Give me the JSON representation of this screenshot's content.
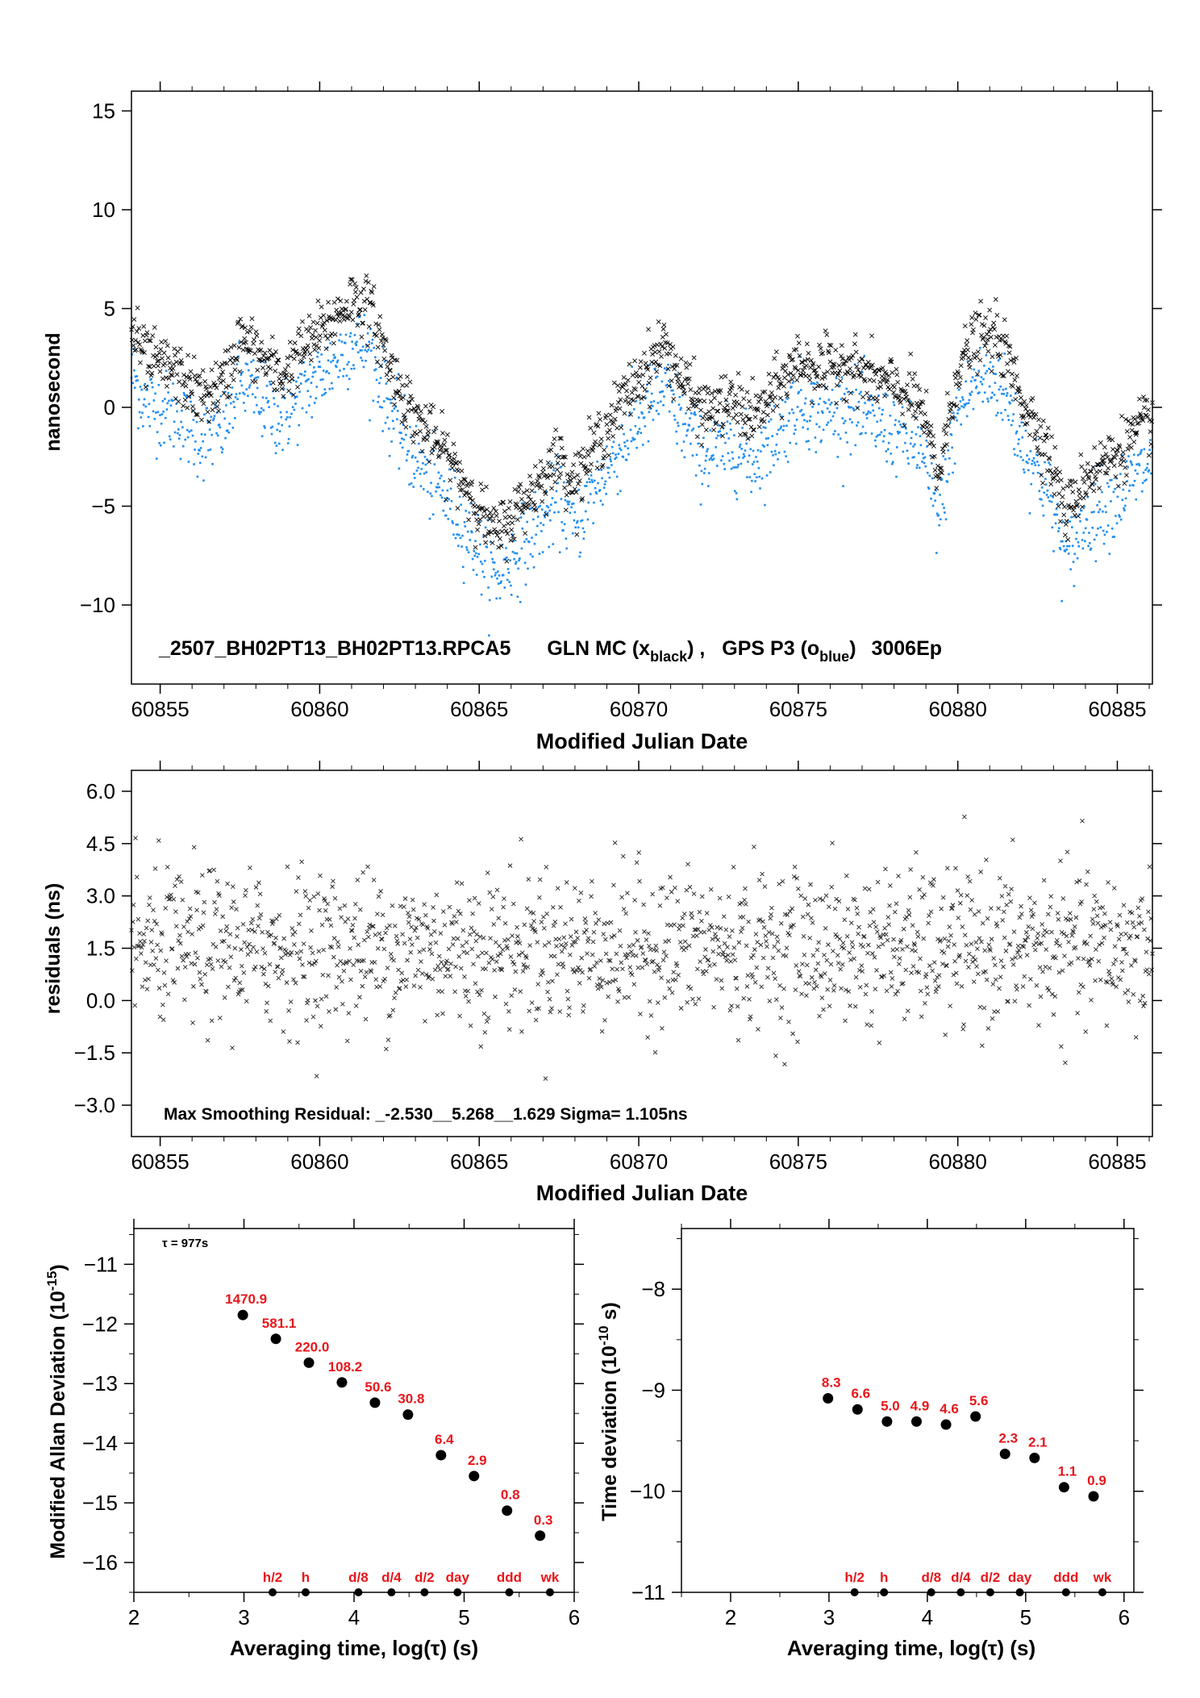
{
  "chart_data": [
    {
      "type": "scatter",
      "xlabel": "Modified Julian Date",
      "ylabel": "nanosecond",
      "xlim": [
        60854.1,
        60886.1
      ],
      "ylim": [
        -14,
        16
      ],
      "xticks": [
        60855,
        60860,
        60865,
        60870,
        60875,
        60880,
        60885
      ],
      "yticks": [
        -10,
        -5,
        0,
        5,
        10,
        15
      ],
      "xtick_labels": [
        "60855",
        "60860",
        "60865",
        "60870",
        "60875",
        "60880",
        "60885"
      ],
      "ytick_labels": [
        "−10",
        "−5",
        "0",
        "5",
        "10",
        "15"
      ],
      "legend_text": {
        "prefix": "_2507_BH02PT13_BH02PT13.RPCA5",
        "gln_main": "GLN MC (x",
        "gln_sub": "black",
        "gln_end": ") ,",
        "gps_main": "GPS P3 (o",
        "gps_sub": "blue",
        "gps_end": ")",
        "epochs": "3006Ep"
      },
      "series_colors": {
        "black": "#000000",
        "blue": "#1f8ef1"
      },
      "series": [
        {
          "marker": "x",
          "color": "#000000",
          "trend": [
            [
              60854.1,
              4.0
            ],
            [
              60854.5,
              2.5
            ],
            [
              60855.5,
              1.8
            ],
            [
              60856.3,
              0.5
            ],
            [
              60857.0,
              1.2
            ],
            [
              60857.5,
              3.5
            ],
            [
              60858.0,
              2.8
            ],
            [
              60858.8,
              1.5
            ],
            [
              60859.5,
              3.0
            ],
            [
              60860.3,
              4.2
            ],
            [
              60861.0,
              5.5
            ],
            [
              60861.6,
              5.0
            ],
            [
              60862.2,
              2.0
            ],
            [
              60863.0,
              -0.5
            ],
            [
              60864.0,
              -2.5
            ],
            [
              60864.8,
              -4.5
            ],
            [
              60865.5,
              -6.5
            ],
            [
              60866.3,
              -5.0
            ],
            [
              60867.0,
              -3.5
            ],
            [
              60867.5,
              -2.5
            ],
            [
              60868.0,
              -3.8
            ],
            [
              60868.6,
              -2.0
            ],
            [
              60869.2,
              -0.5
            ],
            [
              60870.0,
              1.5
            ],
            [
              60870.8,
              3.2
            ],
            [
              60871.3,
              1.5
            ],
            [
              60872.0,
              -0.2
            ],
            [
              60873.0,
              0.2
            ],
            [
              60873.6,
              -0.6
            ],
            [
              60874.2,
              0.6
            ],
            [
              60875.0,
              2.4
            ],
            [
              60875.8,
              1.8
            ],
            [
              60876.5,
              2.3
            ],
            [
              60877.2,
              1.5
            ],
            [
              60878.0,
              1.0
            ],
            [
              60878.8,
              0.2
            ],
            [
              60879.4,
              -3.5
            ],
            [
              60880.0,
              2.0
            ],
            [
              60880.6,
              3.5
            ],
            [
              60881.3,
              3.5
            ],
            [
              60882.0,
              0.5
            ],
            [
              60882.8,
              -2.0
            ],
            [
              60883.4,
              -5.5
            ],
            [
              60884.0,
              -3.5
            ],
            [
              60885.0,
              -2.3
            ],
            [
              60886.1,
              -0.5
            ]
          ]
        },
        {
          "marker": "o",
          "color": "#1f8ef1",
          "offset_from_black": -2.2
        }
      ]
    },
    {
      "type": "scatter",
      "xlabel": "Modified Julian Date",
      "ylabel": "residuals (ns)",
      "xlim": [
        60854.1,
        60886.1
      ],
      "ylim": [
        -3.9,
        6.6
      ],
      "xticks": [
        60855,
        60860,
        60865,
        60870,
        60875,
        60880,
        60885
      ],
      "yticks": [
        -3.0,
        -1.5,
        0.0,
        1.5,
        3.0,
        4.5,
        6.0
      ],
      "xtick_labels": [
        "60855",
        "60860",
        "60865",
        "60870",
        "60875",
        "60880",
        "60885"
      ],
      "ytick_labels": [
        "−3.0",
        "−1.5",
        "0.0",
        "1.5",
        "3.0",
        "4.5",
        "6.0"
      ],
      "annotation": "Max Smoothing Residual: _-2.530__5.268__1.629  Sigma= 1.105ns",
      "center": 1.5,
      "sigma": 1.105,
      "min": -2.53,
      "max": 5.268
    },
    {
      "type": "scatter",
      "xlabel": "Averaging time, log(τ) (s)",
      "ylabel_main": "Modified Allan Deviation (10",
      "ylabel_sup": "-15",
      "ylabel_end": ")",
      "xlim": [
        2,
        6
      ],
      "ylim": [
        -16.5,
        -10.4
      ],
      "xticks": [
        2,
        3,
        4,
        5,
        6
      ],
      "yticks": [
        -16,
        -15,
        -14,
        -13,
        -12,
        -11
      ],
      "xtick_labels": [
        "2",
        "3",
        "4",
        "5",
        "6"
      ],
      "ytick_labels": [
        "−16",
        "−15",
        "−14",
        "−13",
        "−12",
        "−11"
      ],
      "tau_note": "τ = 977s",
      "x": [
        2.99,
        3.29,
        3.59,
        3.89,
        4.19,
        4.49,
        4.79,
        5.09,
        5.39,
        5.69
      ],
      "y": [
        -11.85,
        -12.25,
        -12.65,
        -12.98,
        -13.32,
        -13.52,
        -14.2,
        -14.55,
        -15.13,
        -15.55
      ],
      "point_labels": [
        "1470.9",
        "581.1",
        "220.0",
        "108.2",
        "50.6",
        "30.8",
        "6.4",
        "2.9",
        "0.8",
        "0.3"
      ],
      "marker_x": [
        3.26,
        3.56,
        4.04,
        4.34,
        4.64,
        4.94,
        5.41,
        5.78
      ],
      "marker_labels": [
        "h/2",
        "h",
        "d/8",
        "d/4",
        "d/2",
        "day",
        "ddd",
        "wk"
      ],
      "marker_y": -16.5
    },
    {
      "type": "scatter",
      "xlabel": "Averaging time, log(τ) (s)",
      "ylabel_main": "Time deviation (10",
      "ylabel_sup": "-10",
      "ylabel_end": " s)",
      "xlim": [
        1.5,
        6.1
      ],
      "ylim": [
        -11,
        -7.4
      ],
      "xticks": [
        2,
        3,
        4,
        5,
        6
      ],
      "yticks": [
        -11,
        -10,
        -9,
        -8
      ],
      "xtick_labels": [
        "2",
        "3",
        "4",
        "5",
        "6"
      ],
      "ytick_labels": [
        "−11",
        "−10",
        "−9",
        "−8"
      ],
      "x": [
        2.99,
        3.29,
        3.59,
        3.89,
        4.19,
        4.49,
        4.79,
        5.09,
        5.39,
        5.69
      ],
      "y": [
        -9.08,
        -9.19,
        -9.31,
        -9.31,
        -9.34,
        -9.26,
        -9.63,
        -9.67,
        -9.96,
        -10.05
      ],
      "point_labels": [
        "8.3",
        "6.6",
        "5.0",
        "4.9",
        "4.6",
        "5.6",
        "2.3",
        "2.1",
        "1.1",
        "0.9"
      ],
      "marker_x": [
        3.26,
        3.56,
        4.04,
        4.34,
        4.64,
        4.94,
        5.41,
        5.78
      ],
      "marker_labels": [
        "h/2",
        "h",
        "d/8",
        "d/4",
        "d/2",
        "day",
        "ddd",
        "wk"
      ],
      "marker_y": -11
    }
  ]
}
